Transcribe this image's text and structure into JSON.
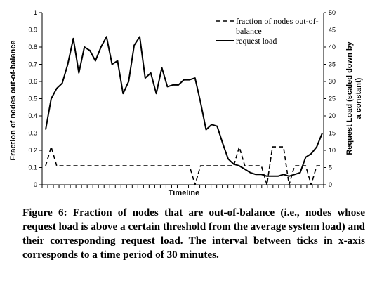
{
  "chart_data": {
    "type": "line",
    "title": "",
    "xlabel": "Timeline",
    "ylabel_left": "Fraction of nodes out-of-balance",
    "ylabel_right": "Request  Load (scaled down by a constant)",
    "y_left_range": [
      0,
      1
    ],
    "y_left_ticks": [
      "0",
      "0.1",
      "0.2",
      "0.3",
      "0.4",
      "0.5",
      "0.6",
      "0.7",
      "0.8",
      "0.9",
      "1"
    ],
    "y_right_range": [
      0,
      50
    ],
    "y_right_ticks": [
      "0",
      "5",
      "10",
      "15",
      "20",
      "25",
      "30",
      "35",
      "40",
      "45",
      "50"
    ],
    "x_tick_count": 50,
    "grid": false,
    "legend_position": "top-right",
    "series": [
      {
        "name": "fraction of nodes out-of-balance",
        "axis": "left",
        "style": "dashed",
        "values": [
          0.11,
          0.22,
          0.11,
          0.11,
          0.11,
          0.11,
          0.11,
          0.11,
          0.11,
          0.11,
          0.11,
          0.11,
          0.11,
          0.11,
          0.11,
          0.11,
          0.11,
          0.11,
          0.11,
          0.11,
          0.11,
          0.11,
          0.11,
          0.11,
          0.11,
          0.11,
          0.11,
          0.0,
          0.11,
          0.11,
          0.11,
          0.11,
          0.11,
          0.11,
          0.11,
          0.22,
          0.11,
          0.11,
          0.11,
          0.11,
          0.0,
          0.22,
          0.22,
          0.22,
          0.0,
          0.11,
          0.11,
          0.11,
          0.0,
          0.11,
          0.11
        ]
      },
      {
        "name": "request load",
        "axis": "right",
        "style": "solid",
        "values": [
          16,
          25,
          28,
          29.5,
          35,
          42.5,
          32.5,
          40,
          39,
          36,
          40,
          43,
          35,
          36,
          26.5,
          30,
          40.5,
          43,
          31,
          32.5,
          26.5,
          34,
          28.5,
          29,
          29,
          30.5,
          30.5,
          31,
          24,
          16,
          17.5,
          17,
          12,
          7.5,
          6,
          5.5,
          4.5,
          3.5,
          3,
          3,
          2.5,
          2.5,
          2.5,
          3,
          2.5,
          3,
          3.5,
          8,
          9,
          11,
          15
        ]
      }
    ]
  },
  "caption": "Figure 6: Fraction of nodes that are out-of-balance (i.e., nodes whose request load is above a certain threshold from the average system load) and their corresponding request load. The interval between ticks in x-axis corresponds to a time period of 30 minutes.",
  "legend": {
    "dashed_label_line1": "fraction of nodes out-of-",
    "dashed_label_line2": "balance",
    "solid_label": "request load"
  }
}
